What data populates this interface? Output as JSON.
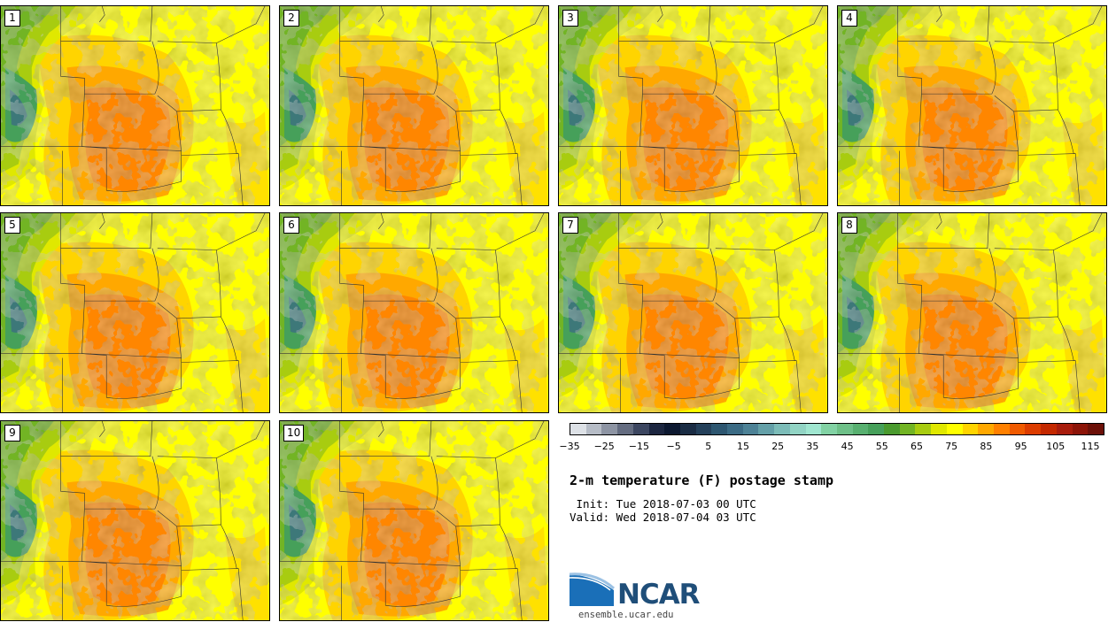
{
  "stamps": [
    {
      "label": "1"
    },
    {
      "label": "2"
    },
    {
      "label": "3"
    },
    {
      "label": "4"
    },
    {
      "label": "5"
    },
    {
      "label": "6"
    },
    {
      "label": "7"
    },
    {
      "label": "8"
    },
    {
      "label": "9"
    },
    {
      "label": "10"
    }
  ],
  "colorbar": {
    "ticks": [
      "−35",
      "−25",
      "−15",
      "−5",
      "5",
      "15",
      "25",
      "35",
      "45",
      "55",
      "65",
      "75",
      "85",
      "95",
      "105",
      "115"
    ],
    "colors": [
      "#dde1e6",
      "#b6bcc6",
      "#8d94a3",
      "#646c80",
      "#3c4660",
      "#1c2640",
      "#0c1830",
      "#1a2c44",
      "#24405a",
      "#2d5670",
      "#3b6b84",
      "#4d8296",
      "#64a0a8",
      "#7cbcb8",
      "#92d4c4",
      "#a0e6d0",
      "#82d2a4",
      "#6ec088",
      "#58b070",
      "#46a05a",
      "#4a9a2e",
      "#72b424",
      "#a8cc10",
      "#e0e800",
      "#ffff00",
      "#ffd400",
      "#ffa800",
      "#ff8000",
      "#f05a00",
      "#dc3c00",
      "#c42800",
      "#a81c0c",
      "#8c1408",
      "#6c1008"
    ]
  },
  "title": "2-m temperature (F) postage stamp",
  "init": " Init: Tue 2018-07-03 00 UTC",
  "valid": "Valid: Wed 2018-07-04 03 UTC",
  "logo": {
    "word": "NCAR",
    "url": "ensemble.ucar.edu"
  }
}
